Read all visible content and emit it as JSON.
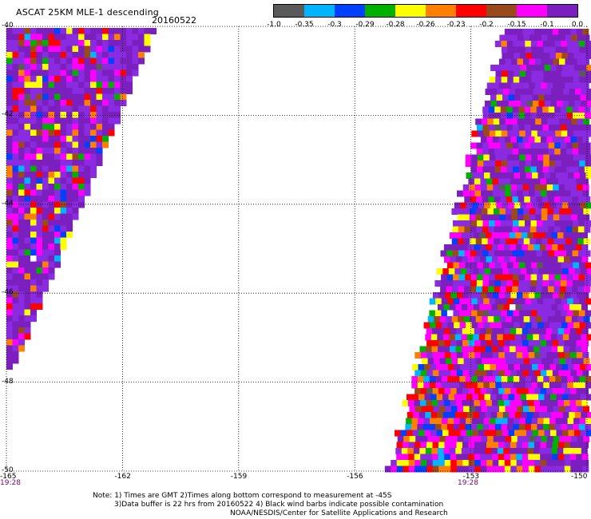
{
  "header": {
    "title": "ASCAT 25KM MLE-1 descending",
    "date": "20160522"
  },
  "colorbar": {
    "colors": [
      "#5a5a5a",
      "#00b4ff",
      "#0040ff",
      "#00b000",
      "#ffff00",
      "#ff8000",
      "#ff0000",
      "#9a4a1a",
      "#ff00ff",
      "#7b1fbf"
    ],
    "labels": [
      "-1.0",
      "-0.35",
      "-0.3",
      "-0.29",
      "-0.28",
      "-0.26",
      "-0.23",
      "-0.2",
      "-0.15",
      "-0.1",
      "0.0"
    ]
  },
  "map": {
    "lat_labels": [
      "-40",
      "-42",
      "-44",
      "-46",
      "-48",
      "-50"
    ],
    "lon_labels": [
      "-165",
      "-162",
      "-159",
      "-156",
      "-153",
      "-150"
    ],
    "time_labels": [
      "19:28",
      "19:28"
    ],
    "swath_palette": {
      "background": "#7b1fbf",
      "accents": [
        "#ff00ff",
        "#ff0000",
        "#ffff00",
        "#ff8000",
        "#0040ff",
        "#00b000",
        "#9a4a1a",
        "#00b4ff",
        "#5a5a5a",
        "#ffffff"
      ]
    }
  },
  "notes": {
    "line1": "Note: 1) Times are GMT 2)Times along bottom correspond to measurement at -45S",
    "line2": "3)Data buffer is 22 hrs from 20160522 4) Black wind barbs indicate possible contamination",
    "line3": "NOAA/NESDIS/Center for Satellite Applications and Research"
  }
}
